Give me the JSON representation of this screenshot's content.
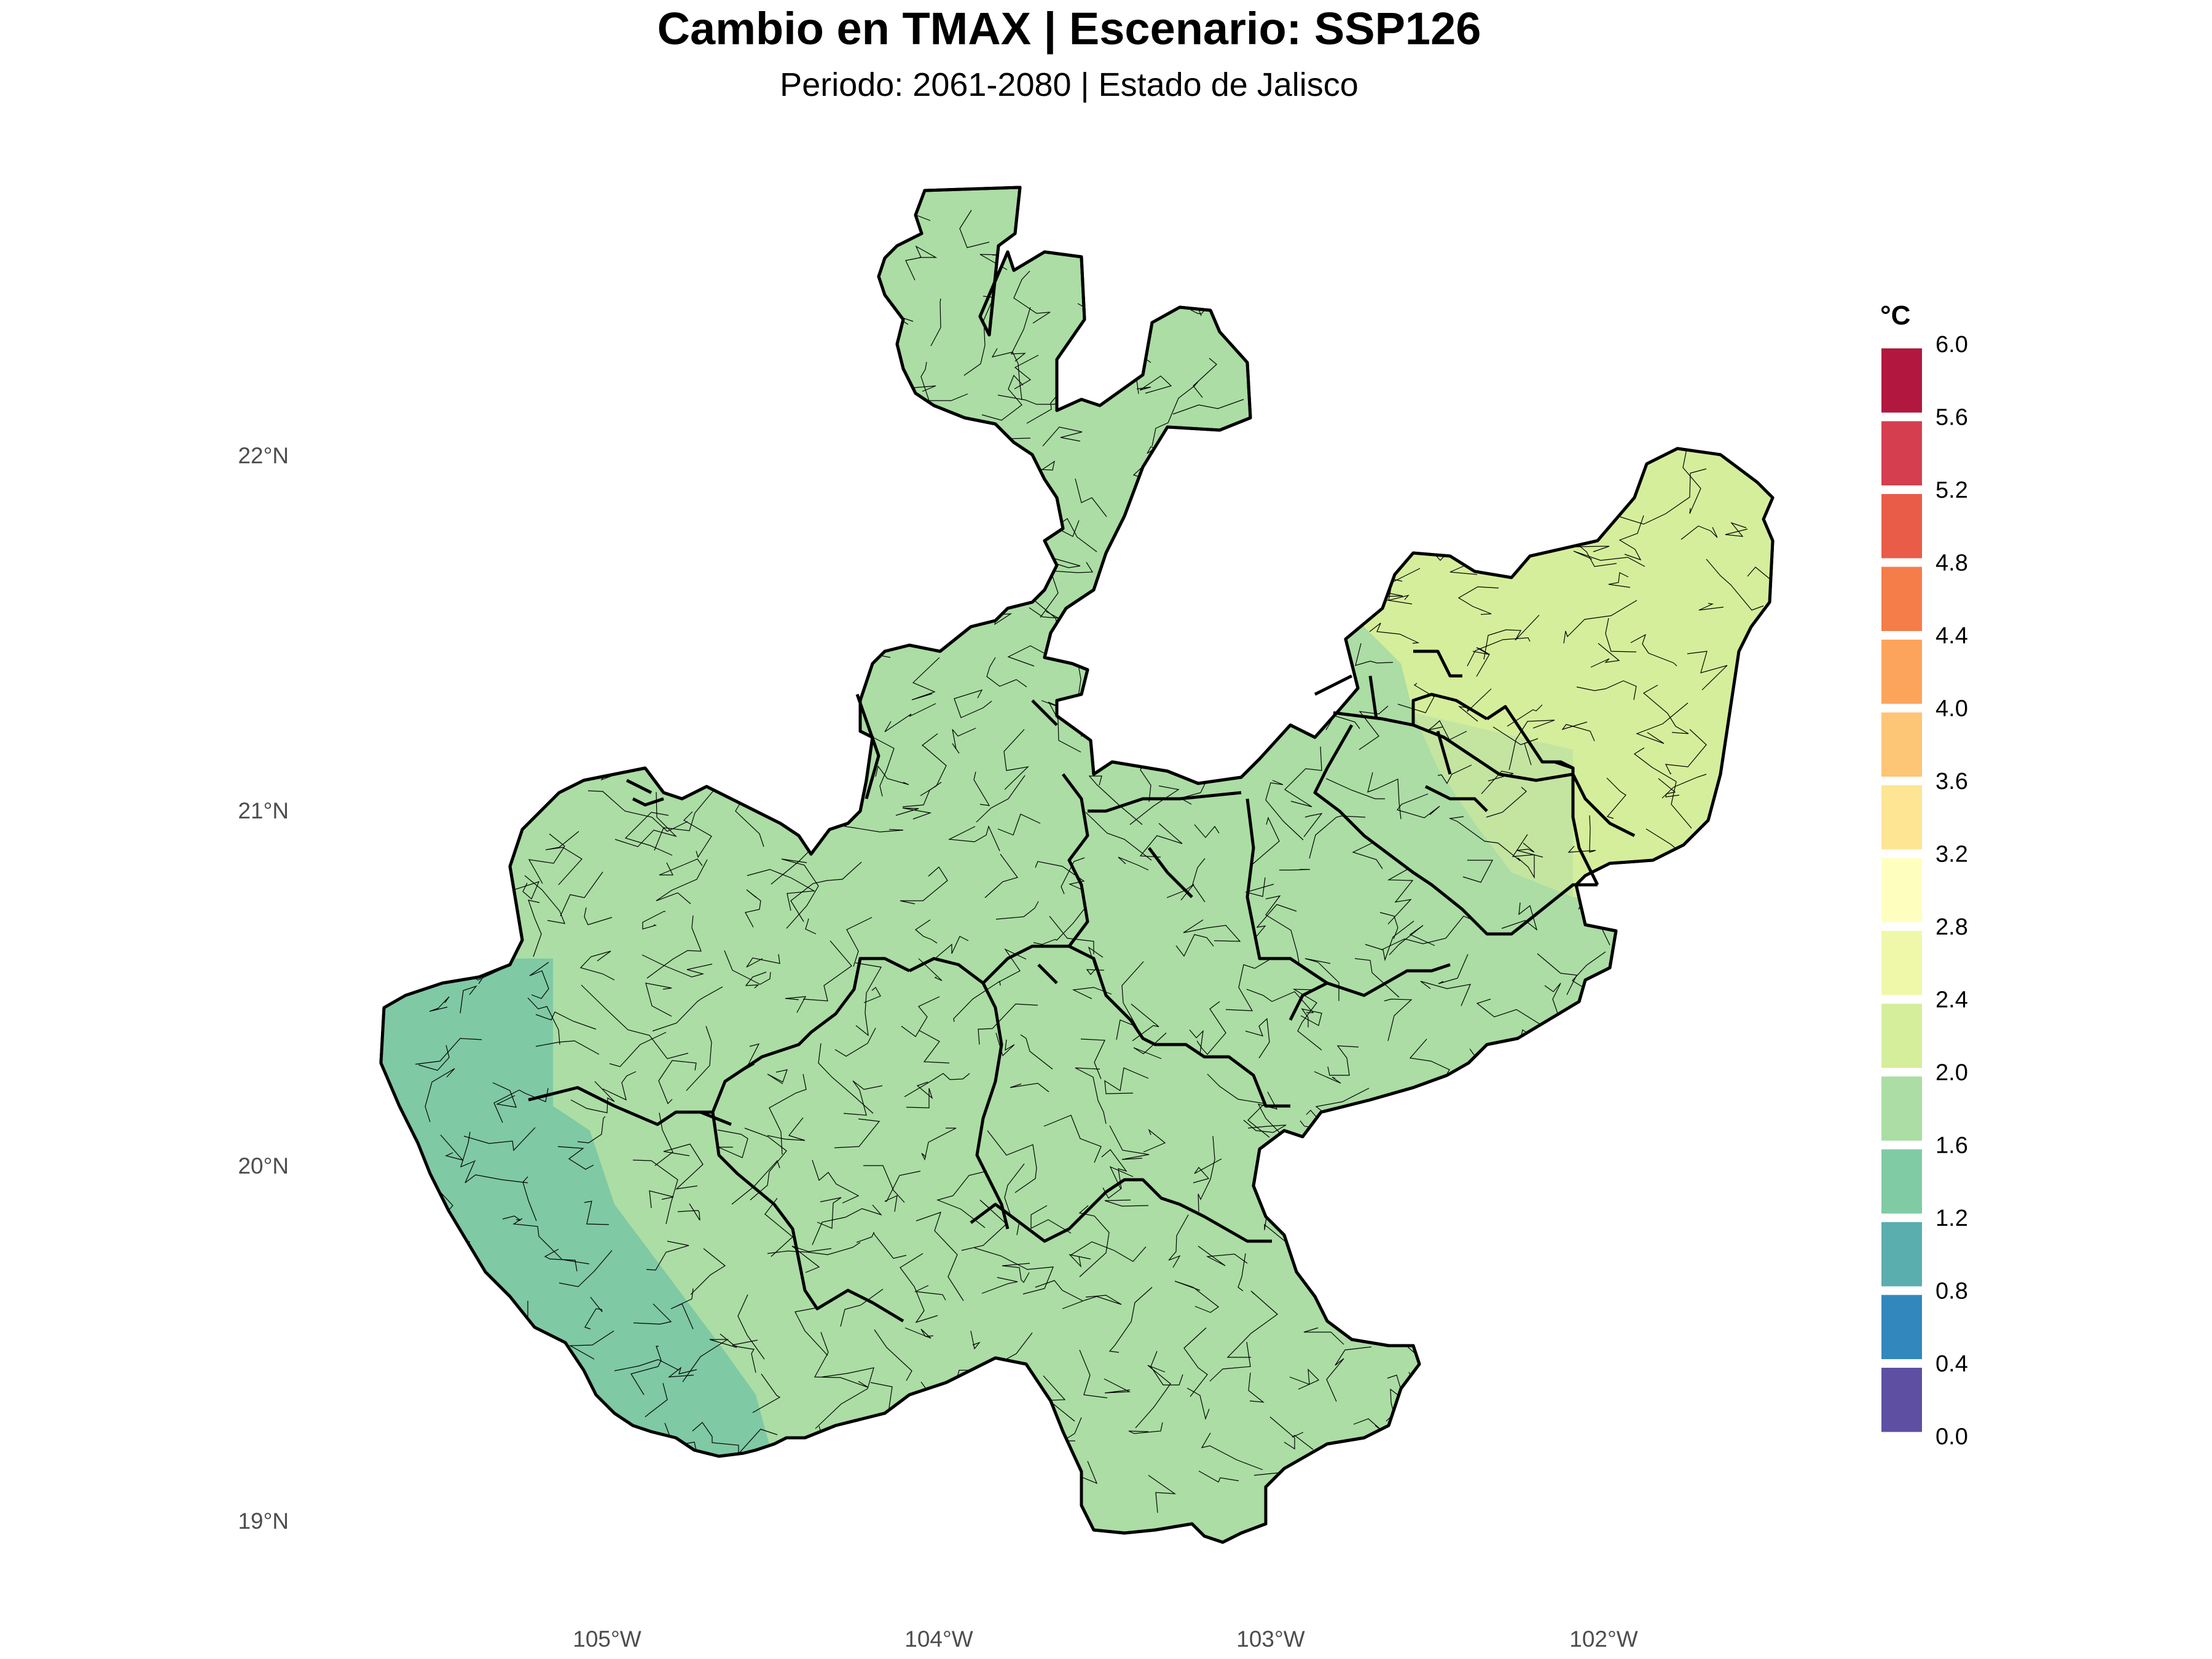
{
  "title": "Cambio en TMAX | Escenario: SSP126",
  "subtitle": "Periodo: 2061-2080 | Estado de Jalisco",
  "map": {
    "region": "Estado de Jalisco",
    "variable": "TMAX",
    "scenario": "SSP126",
    "period": "2061-2080",
    "lat_ticks": [
      "22°N",
      "21°N",
      "20°N",
      "19°N"
    ],
    "lon_ticks": [
      "105°W",
      "104°W",
      "103°W",
      "102°W"
    ],
    "base_color": "#abdda4",
    "coast_color": "#7fc9a4",
    "coast_deep_color": "#66c2a5",
    "northeast_color": "#d5ee9b",
    "transition_color": "#c3e5a0"
  },
  "legend": {
    "title": "°C",
    "labels": [
      "6.0",
      "5.6",
      "5.2",
      "4.8",
      "4.4",
      "4.0",
      "3.6",
      "3.2",
      "2.8",
      "2.4",
      "2.0",
      "1.6",
      "1.2",
      "0.8",
      "0.4",
      "0.0"
    ],
    "colors": [
      "#b2183f",
      "#d53e4f",
      "#e95c47",
      "#f57d4a",
      "#fca45c",
      "#fdc576",
      "#fee593",
      "#feffbf",
      "#eff8a8",
      "#d5ee9b",
      "#abdda4",
      "#80cba4",
      "#5aaeae",
      "#3288bd",
      "#5e4fa2"
    ]
  }
}
